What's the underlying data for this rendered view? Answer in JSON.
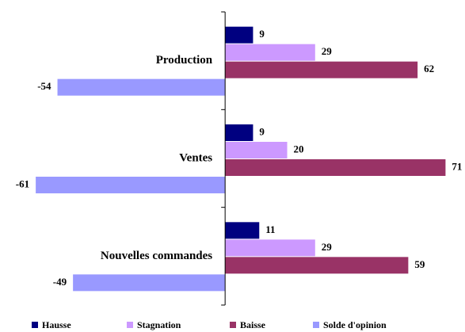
{
  "chart_data": {
    "type": "bar",
    "orientation": "horizontal",
    "categories": [
      "Production",
      "Ventes",
      "Nouvelles commandes"
    ],
    "series": [
      {
        "name": "Hausse",
        "color": "#000080",
        "values": [
          9,
          9,
          11
        ]
      },
      {
        "name": "Stagnation",
        "color": "#cc99ff",
        "values": [
          29,
          20,
          29
        ]
      },
      {
        "name": "Baisse",
        "color": "#993366",
        "values": [
          62,
          71,
          59
        ]
      },
      {
        "name": "Solde d'opinion",
        "color": "#9999ff",
        "values": [
          -54,
          -61,
          -49
        ]
      }
    ],
    "xlim": [
      -72,
      76
    ],
    "legend": "bottom"
  }
}
